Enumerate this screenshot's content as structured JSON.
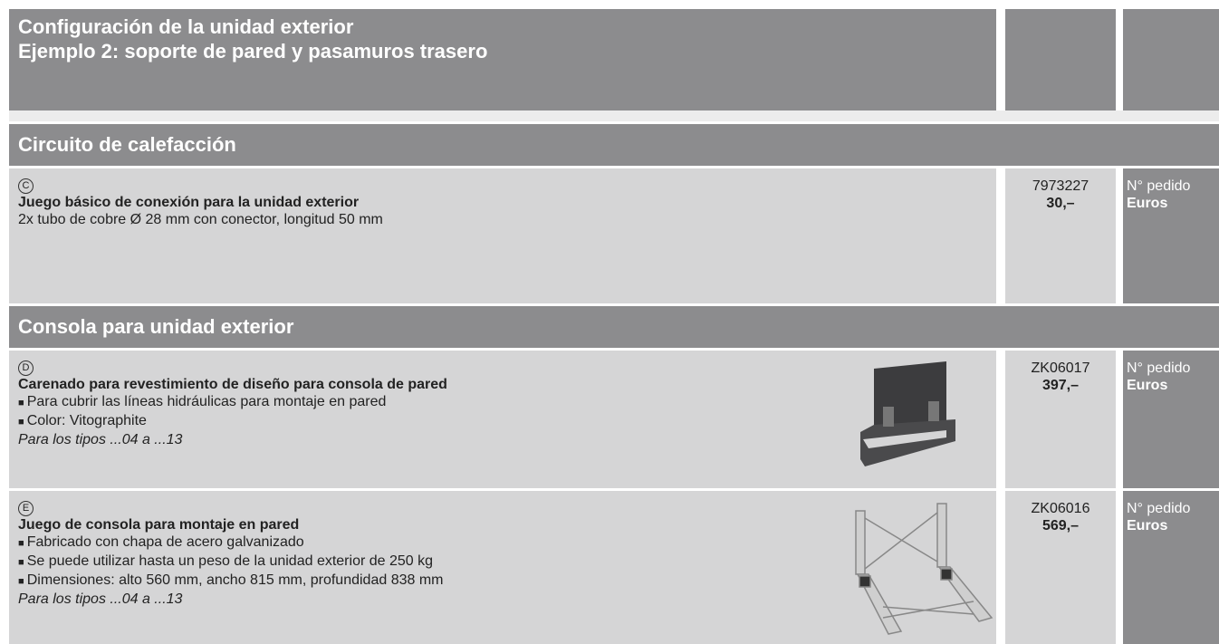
{
  "header": {
    "title_lines": [
      "Configuración de la unidad exterior",
      "Ejemplo 2: soporte de pared y pasamuros trasero"
    ]
  },
  "sections": [
    {
      "title": "Circuito de calefacción",
      "items": [
        {
          "letter": "C",
          "name": "Juego básico de conexión para la unidad exterior",
          "description": "2x tubo de cobre Ø 28 mm con conector, longitud 50 mm",
          "order_number": "7973227",
          "price": "30,–",
          "order_label": "N° pedido",
          "price_label": "Euros"
        }
      ]
    },
    {
      "title": "Consola para unidad exterior",
      "items": [
        {
          "letter": "D",
          "name": "Carenado para revestimiento de diseño para consola de pared",
          "bullets": [
            "Para cubrir las líneas hidráulicas para montaje en pared",
            "Color: Vitographite"
          ],
          "note": "Para los tipos ...04 a ...13",
          "order_number": "ZK06017",
          "price": "397,–",
          "order_label": "N° pedido",
          "price_label": "Euros"
        },
        {
          "letter": "E",
          "name": "Juego de consola para montaje en pared",
          "bullets": [
            "Fabricado con chapa de acero galvanizado",
            "Se puede utilizar hasta un peso de la unidad exterior de 250 kg",
            "Dimensiones: alto 560 mm, ancho 815 mm, profundidad 838 mm"
          ],
          "note": "Para los tipos ...04 a ...13",
          "order_number": "ZK06016",
          "price": "569,–",
          "order_label": "N° pedido",
          "price_label": "Euros"
        }
      ]
    }
  ]
}
